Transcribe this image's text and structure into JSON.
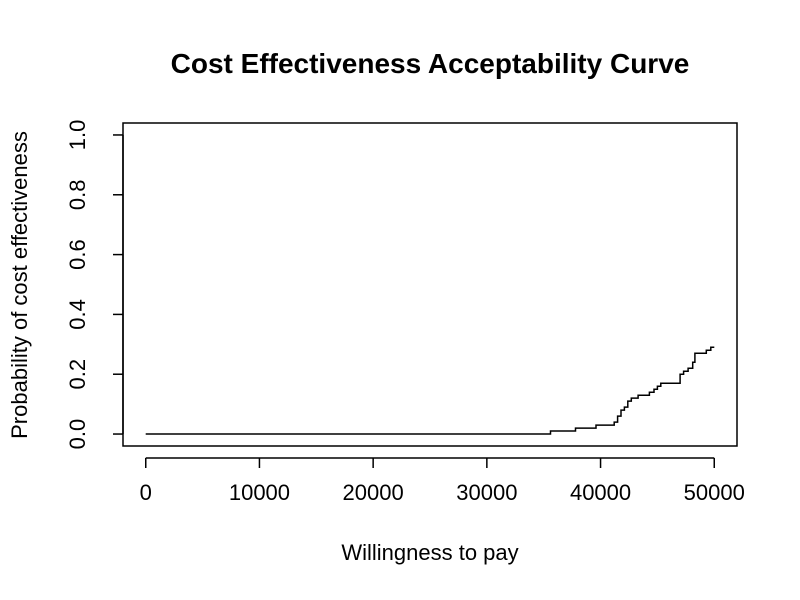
{
  "chart_data": {
    "type": "line",
    "title": "Cost Effectiveness Acceptability Curve",
    "xlabel": "Willingness to pay",
    "ylabel": "Probability of cost effectiveness",
    "xlim": [
      -2000,
      52000
    ],
    "ylim": [
      -0.04,
      1.04
    ],
    "xticks": [
      0,
      10000,
      20000,
      30000,
      40000,
      50000
    ],
    "xtick_labels": [
      "0",
      "10000",
      "20000",
      "30000",
      "40000",
      "50000"
    ],
    "yticks": [
      0.0,
      0.2,
      0.4,
      0.6,
      0.8,
      1.0
    ],
    "ytick_labels": [
      "0.0",
      "0.2",
      "0.4",
      "0.6",
      "0.8",
      "1.0"
    ],
    "grid": false,
    "legend": "none",
    "line_color": "#000000",
    "series": [
      {
        "x": [
          0,
          35600,
          35600,
          37800,
          37800,
          39600,
          39600,
          41200,
          41200,
          41500,
          41500,
          41800,
          41800,
          42100,
          42100,
          42400,
          42400,
          42700,
          42700,
          43300,
          43300,
          44300,
          44300,
          44700,
          44700,
          45000,
          45000,
          45300,
          45300,
          47000,
          47000,
          47300,
          47300,
          47700,
          47700,
          48100,
          48100,
          48300,
          48300,
          48600,
          48600,
          49300,
          49300,
          49700,
          49700,
          50000
        ],
        "y": [
          0.0,
          0.0,
          0.01,
          0.01,
          0.02,
          0.02,
          0.03,
          0.03,
          0.04,
          0.04,
          0.06,
          0.06,
          0.08,
          0.08,
          0.09,
          0.09,
          0.11,
          0.11,
          0.12,
          0.12,
          0.13,
          0.13,
          0.14,
          0.14,
          0.15,
          0.15,
          0.16,
          0.16,
          0.17,
          0.17,
          0.2,
          0.2,
          0.21,
          0.21,
          0.22,
          0.22,
          0.24,
          0.24,
          0.27,
          0.27,
          0.27,
          0.27,
          0.28,
          0.28,
          0.29,
          0.29
        ]
      }
    ]
  }
}
